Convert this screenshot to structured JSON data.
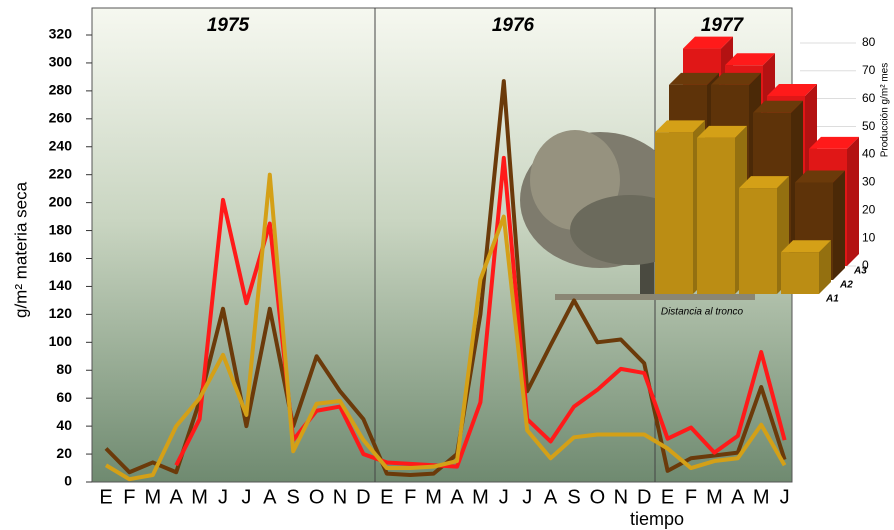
{
  "chart_data": [
    {
      "type": "line",
      "ylabel": "g/m² materia seca",
      "xlabel": "tiempo",
      "annotations": [
        "1975",
        "1976",
        "1977"
      ],
      "categories": [
        "E",
        "F",
        "M",
        "A",
        "M",
        "J",
        "J",
        "A",
        "S",
        "O",
        "N",
        "D",
        "E",
        "F",
        "M",
        "A",
        "M",
        "J",
        "J",
        "A",
        "S",
        "O",
        "N",
        "D",
        "E",
        "F",
        "M",
        "A",
        "M",
        "J"
      ],
      "series": [
        {
          "color": "#6b3a0a",
          "values": [
            24,
            7,
            14,
            7,
            58,
            124,
            40,
            124,
            40,
            90,
            65,
            45,
            6,
            5,
            6,
            20,
            120,
            287,
            65,
            98,
            130,
            100,
            102,
            85,
            8,
            17,
            19,
            21,
            68,
            16
          ]
        },
        {
          "color": "#ff1a1a",
          "values": [
            null,
            null,
            null,
            12,
            45,
            202,
            128,
            185,
            30,
            51,
            54,
            20,
            14,
            13,
            12,
            11,
            57,
            232,
            45,
            29,
            54,
            66,
            81,
            78,
            31,
            39,
            21,
            33,
            93,
            30
          ]
        },
        {
          "color": "#d4a017",
          "values": [
            12,
            2,
            5,
            40,
            60,
            91,
            48,
            220,
            22,
            56,
            58,
            30,
            10,
            10,
            11,
            15,
            145,
            190,
            37,
            17,
            32,
            34,
            34,
            34,
            24,
            10,
            15,
            17,
            41,
            12
          ]
        }
      ],
      "ylim": [
        0,
        320
      ],
      "yticks": [
        0,
        20,
        40,
        60,
        80,
        100,
        120,
        140,
        160,
        180,
        200,
        220,
        240,
        260,
        280,
        300,
        320
      ]
    },
    {
      "type": "bar3d",
      "ylabel": "Producción g/m² mes",
      "xlabel": "Distancia al tronco",
      "series": [
        {
          "name": "A1",
          "color": "#d4a017",
          "values": [
            58,
            56,
            38,
            15
          ]
        },
        {
          "name": "A2",
          "color": "#6b3a0a",
          "values": [
            70,
            70,
            60,
            35
          ]
        },
        {
          "name": "A3",
          "color": "#ff1a1a",
          "values": [
            78,
            72,
            61,
            42
          ]
        }
      ],
      "ylim": [
        0,
        80
      ],
      "yticks": [
        0,
        10,
        20,
        30,
        40,
        50,
        60,
        70,
        80
      ]
    }
  ]
}
